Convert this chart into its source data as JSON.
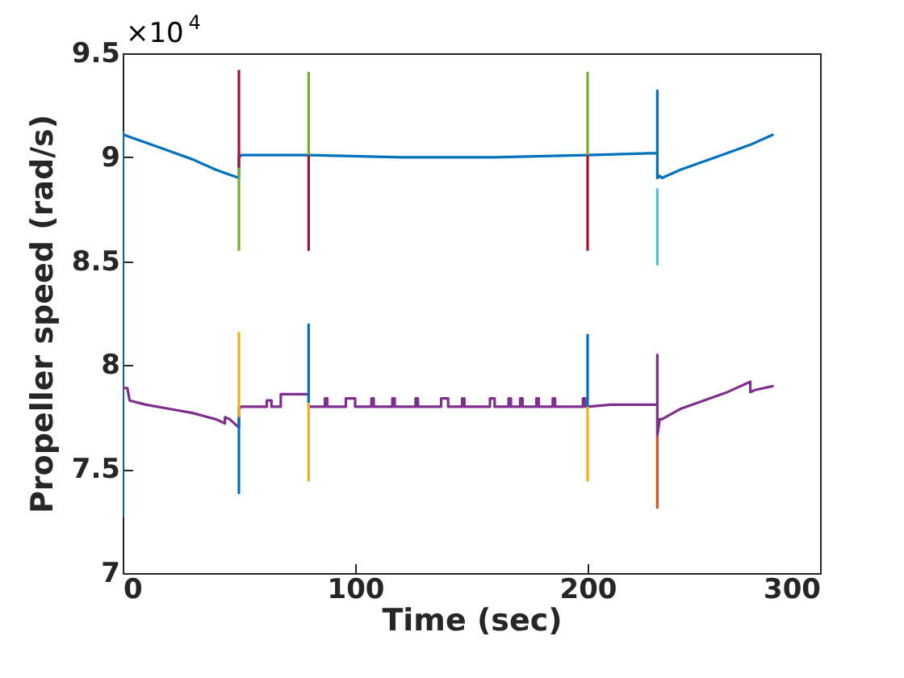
{
  "chart_data": {
    "type": "line",
    "xlabel": "Time (sec)",
    "ylabel": "Propeller speed (rad/s)",
    "annotations": [
      "×10$^{4}$"
    ],
    "xlim": [
      0,
      300
    ],
    "xticks": [
      0,
      100,
      200,
      300
    ],
    "ylim": [
      7,
      9.5
    ],
    "yticks": [
      7,
      7.5,
      8,
      8.5,
      9,
      9.5
    ],
    "grid": false,
    "legend": false,
    "series": [
      {
        "color": "#0072bd",
        "x": [
          0,
          0,
          0,
          10,
          20,
          30,
          40,
          50,
          50,
          51,
          52,
          80,
          120,
          160,
          200,
          230,
          230,
          230,
          231,
          232,
          240,
          250,
          260,
          270,
          280
        ],
        "values": [
          7.27,
          9.12,
          9.11,
          9.07,
          9.03,
          8.99,
          8.94,
          8.9,
          9,
          9.01,
          9.01,
          9.01,
          9,
          9,
          9.01,
          9.02,
          9.32,
          8.9,
          8.91,
          8.9,
          8.94,
          8.98,
          9.02,
          9.06,
          9.11
        ]
      },
      {
        "color": "#7e2f8e",
        "x": [
          0,
          2,
          3,
          10,
          20,
          30,
          40,
          44,
          44,
          46,
          50,
          50,
          51,
          62,
          62,
          64,
          64,
          68,
          68,
          80,
          80,
          81,
          87,
          87,
          88,
          88,
          96,
          96,
          100,
          100,
          107,
          107,
          108,
          108,
          116,
          116,
          117,
          117,
          126,
          126,
          127,
          127,
          137,
          137,
          140,
          140,
          146,
          146,
          147,
          147,
          158,
          158,
          160,
          160,
          166,
          166,
          167,
          167,
          171,
          171,
          172,
          172,
          178,
          178,
          179,
          179,
          185,
          185,
          186,
          186,
          198,
          198,
          199,
          199,
          200,
          210,
          220,
          230,
          230,
          230,
          231,
          232,
          240,
          250,
          260,
          270,
          270,
          272,
          280
        ],
        "values": [
          7.89,
          7.89,
          7.83,
          7.81,
          7.79,
          7.77,
          7.74,
          7.72,
          7.75,
          7.74,
          7.7,
          7.79,
          7.8,
          7.8,
          7.83,
          7.83,
          7.8,
          7.8,
          7.86,
          7.86,
          7.8,
          7.8,
          7.8,
          7.84,
          7.84,
          7.8,
          7.8,
          7.84,
          7.84,
          7.8,
          7.8,
          7.84,
          7.84,
          7.8,
          7.8,
          7.84,
          7.84,
          7.8,
          7.8,
          7.84,
          7.84,
          7.8,
          7.8,
          7.84,
          7.84,
          7.8,
          7.8,
          7.84,
          7.84,
          7.8,
          7.8,
          7.84,
          7.84,
          7.8,
          7.8,
          7.84,
          7.84,
          7.8,
          7.8,
          7.84,
          7.84,
          7.8,
          7.8,
          7.84,
          7.84,
          7.8,
          7.8,
          7.84,
          7.84,
          7.8,
          7.8,
          7.84,
          7.84,
          7.8,
          7.8,
          7.81,
          7.81,
          7.81,
          8.05,
          7.66,
          7.74,
          7.74,
          7.79,
          7.83,
          7.87,
          7.92,
          7.87,
          7.88,
          7.9
        ]
      },
      {
        "color": "#a2142f",
        "x": [
          50,
          50
        ],
        "values": [
          9.42,
          8.95
        ]
      },
      {
        "color": "#77ac30",
        "x": [
          50,
          50
        ],
        "values": [
          8.95,
          8.55
        ]
      },
      {
        "color": "#edb120",
        "x": [
          50,
          50
        ],
        "values": [
          8.16,
          7.75
        ]
      },
      {
        "color": "#0072bd",
        "x": [
          50,
          50
        ],
        "values": [
          7.75,
          7.38
        ]
      },
      {
        "color": "#77ac30",
        "x": [
          80,
          80
        ],
        "values": [
          9.41,
          9.01
        ]
      },
      {
        "color": "#a2142f",
        "x": [
          80,
          80
        ],
        "values": [
          9.01,
          8.55
        ]
      },
      {
        "color": "#0072bd",
        "x": [
          80,
          80
        ],
        "values": [
          8.2,
          7.82
        ]
      },
      {
        "color": "#edb120",
        "x": [
          80,
          80
        ],
        "values": [
          7.82,
          7.44
        ]
      },
      {
        "color": "#77ac30",
        "x": [
          200,
          200
        ],
        "values": [
          9.41,
          9.01
        ]
      },
      {
        "color": "#a2142f",
        "x": [
          200,
          200
        ],
        "values": [
          9.01,
          8.55
        ]
      },
      {
        "color": "#0072bd",
        "x": [
          200,
          200
        ],
        "values": [
          8.15,
          7.8
        ]
      },
      {
        "color": "#edb120",
        "x": [
          200,
          200
        ],
        "values": [
          7.8,
          7.44
        ]
      },
      {
        "color": "#4dbeee",
        "x": [
          230,
          230
        ],
        "values": [
          8.85,
          8.48
        ]
      },
      {
        "color": "#d95319",
        "x": [
          230,
          230
        ],
        "values": [
          7.66,
          7.31
        ]
      }
    ]
  }
}
